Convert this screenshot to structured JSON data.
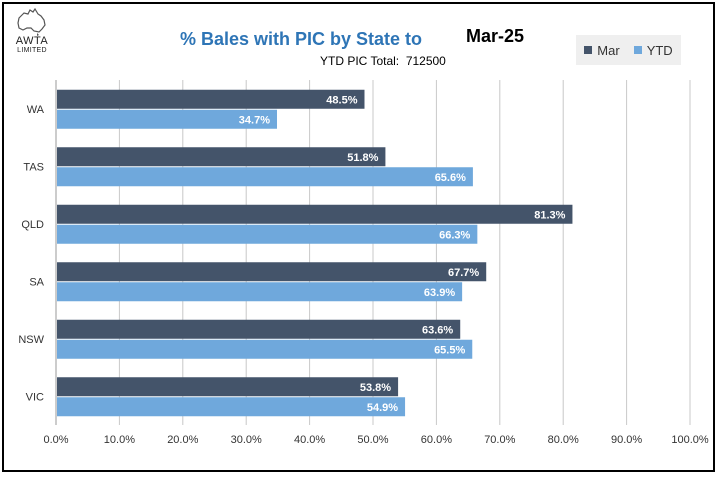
{
  "logo": {
    "name": "AWTA",
    "sub": "LIMITED"
  },
  "header": {
    "title": "% Bales with PIC by State to",
    "period": "Mar-25",
    "subtitle_label": "YTD PIC Total:",
    "subtitle_value": "712500"
  },
  "legend": [
    {
      "label": "Mar",
      "color": "#44546a"
    },
    {
      "label": "YTD",
      "color": "#6fa8dc"
    }
  ],
  "chart_data": {
    "type": "bar",
    "orientation": "horizontal",
    "title": "% Bales with PIC by State to",
    "categories": [
      "WA",
      "TAS",
      "QLD",
      "SA",
      "NSW",
      "VIC"
    ],
    "series": [
      {
        "name": "Mar",
        "color": "#44546a",
        "values": [
          48.5,
          51.8,
          81.3,
          67.7,
          63.6,
          53.8
        ],
        "labels": [
          "48.5%",
          "51.8%",
          "81.3%",
          "67.7%",
          "63.6%",
          "53.8%"
        ]
      },
      {
        "name": "YTD",
        "color": "#6fa8dc",
        "values": [
          34.7,
          65.6,
          66.3,
          63.9,
          65.5,
          54.9
        ],
        "labels": [
          "34.7%",
          "65.6%",
          "66.3%",
          "63.9%",
          "65.5%",
          "54.9%"
        ]
      }
    ],
    "xlim": [
      0,
      100
    ],
    "xticks": [
      "0.0%",
      "10.0%",
      "20.0%",
      "30.0%",
      "40.0%",
      "50.0%",
      "60.0%",
      "70.0%",
      "80.0%",
      "90.0%",
      "100.0%"
    ],
    "grid": true,
    "legend_position": "top-right"
  }
}
